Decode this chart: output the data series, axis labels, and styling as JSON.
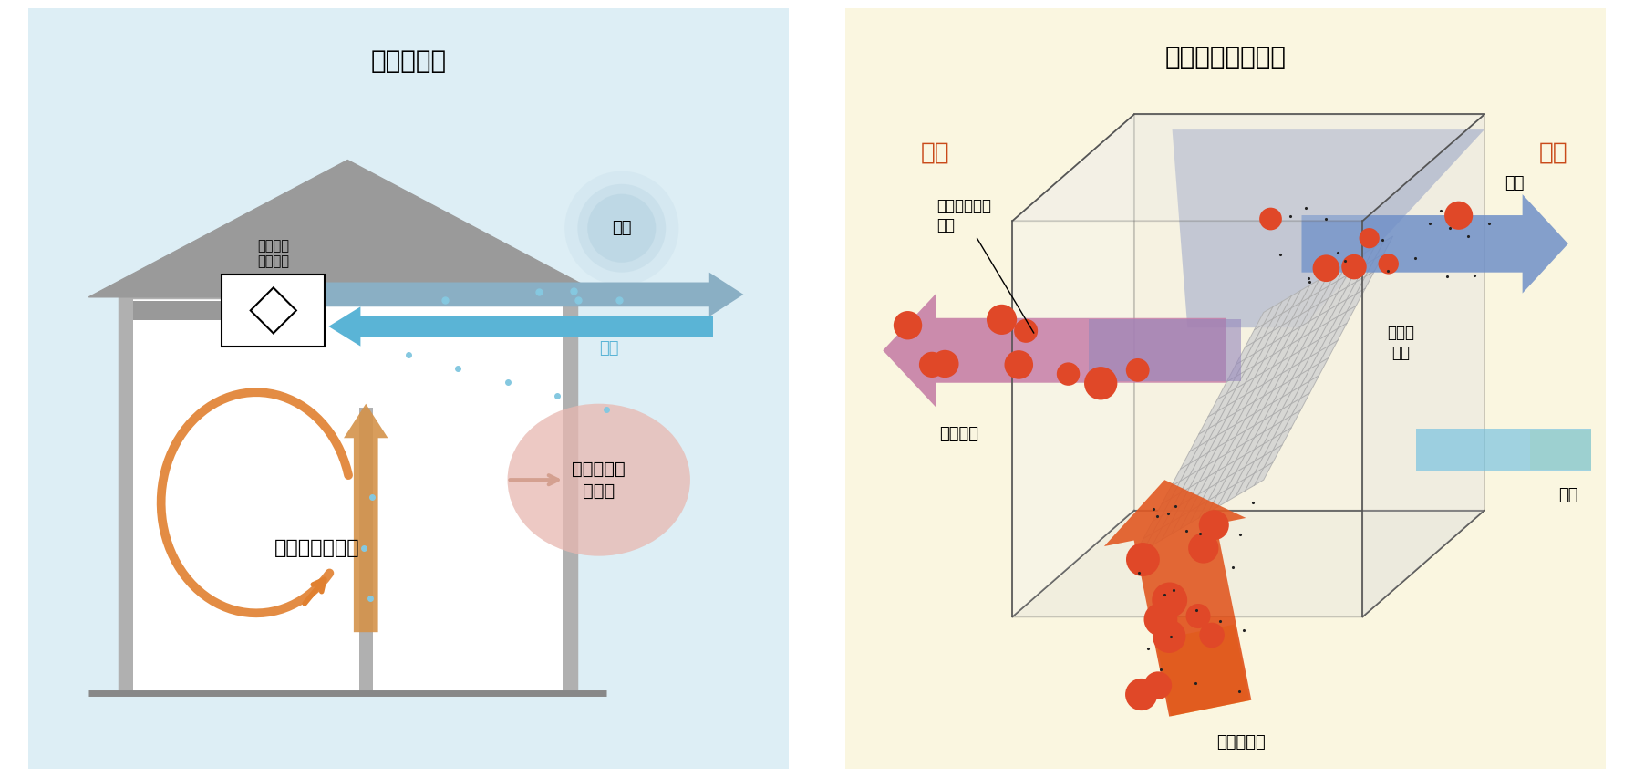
{
  "left_bg": "#ddeef5",
  "right_bg": "#faf6e0",
  "left_title": "換気の方法",
  "right_title": "熱交換気ユニット",
  "title_fontsize": 20,
  "label_fontsize": 13,
  "house_roof_color": "#9a9a9a",
  "house_wall_color": "#b0b0b0",
  "house_floor_color": "#888888",
  "pipe_color": "#888888",
  "arrow_gray_color": "#7a9baf",
  "arrow_blue_color": "#5ab4d6",
  "arrow_orange_color": "#e08030",
  "label_shimeki": "湿気",
  "label_gaiki": "外気",
  "label_kaiteki": "快適な室内環境",
  "label_netsu": "熱交換気\nユニット",
  "label_ondo": "温度＋湿度\nを交換",
  "label_shitsunai": "室内",
  "label_shitsugai": "室外",
  "label_netsue": "熱エネルギー\n回収",
  "label_shinsen": "新鮮空気",
  "label_haishutsu": "排出",
  "label_gaiki2": "外気",
  "label_netsukoukan": "熱交換\n素子",
  "label_yogoreta": "汚れた空気",
  "shitsunai_color": "#c94a1a",
  "shitsugai_color": "#c94a1a"
}
